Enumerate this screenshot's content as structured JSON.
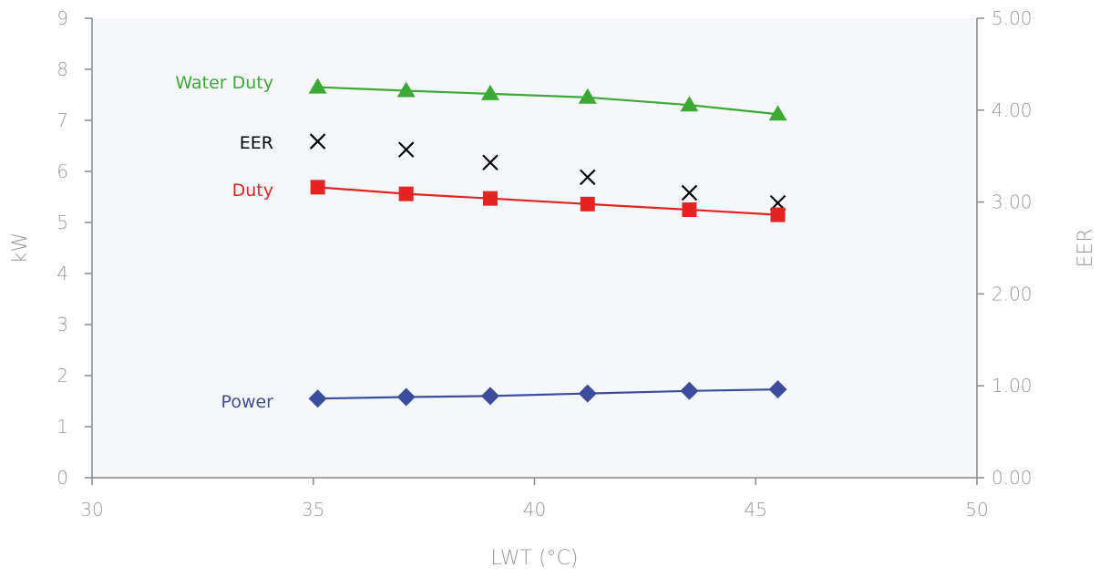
{
  "chart_data": {
    "type": "line",
    "xlabel": "LWT (°C)",
    "ylabel": "kW",
    "y2label": "EER",
    "xlim": [
      30,
      50
    ],
    "ylim": [
      0,
      9
    ],
    "y2lim": [
      0,
      5
    ],
    "x_ticks": [
      "30",
      "35",
      "40",
      "45",
      "50"
    ],
    "y_ticks": [
      "0",
      "1",
      "2",
      "3",
      "4",
      "5",
      "6",
      "7",
      "8",
      "9"
    ],
    "y2_ticks": [
      "0.00",
      "1.00",
      "2.00",
      "3.00",
      "4.00",
      "5.00"
    ],
    "grid": false,
    "plot_background": "#f5f7fa",
    "series": [
      {
        "name": "Water Duty",
        "axis": "left",
        "color": "#3aaa35",
        "marker": "triangle",
        "line": true,
        "x": [
          35.1,
          37.1,
          39.0,
          41.2,
          43.5,
          45.5
        ],
        "y": [
          7.65,
          7.58,
          7.52,
          7.45,
          7.3,
          7.12
        ]
      },
      {
        "name": "EER",
        "axis": "right",
        "color": "#000000",
        "marker": "x",
        "line": false,
        "x": [
          35.1,
          37.1,
          39.0,
          41.2,
          43.5,
          45.5
        ],
        "y": [
          3.66,
          3.57,
          3.43,
          3.27,
          3.1,
          2.99
        ]
      },
      {
        "name": "Duty",
        "axis": "left",
        "color": "#e52421",
        "marker": "square",
        "line": true,
        "x": [
          35.1,
          37.1,
          39.0,
          41.2,
          43.5,
          45.5
        ],
        "y": [
          5.69,
          5.56,
          5.47,
          5.36,
          5.25,
          5.15
        ]
      },
      {
        "name": "Power",
        "axis": "left",
        "color": "#3c4d9e",
        "marker": "diamond",
        "line": true,
        "x": [
          35.1,
          37.1,
          39.0,
          41.2,
          43.5,
          45.5
        ],
        "y": [
          1.55,
          1.58,
          1.6,
          1.65,
          1.7,
          1.73
        ]
      }
    ]
  }
}
